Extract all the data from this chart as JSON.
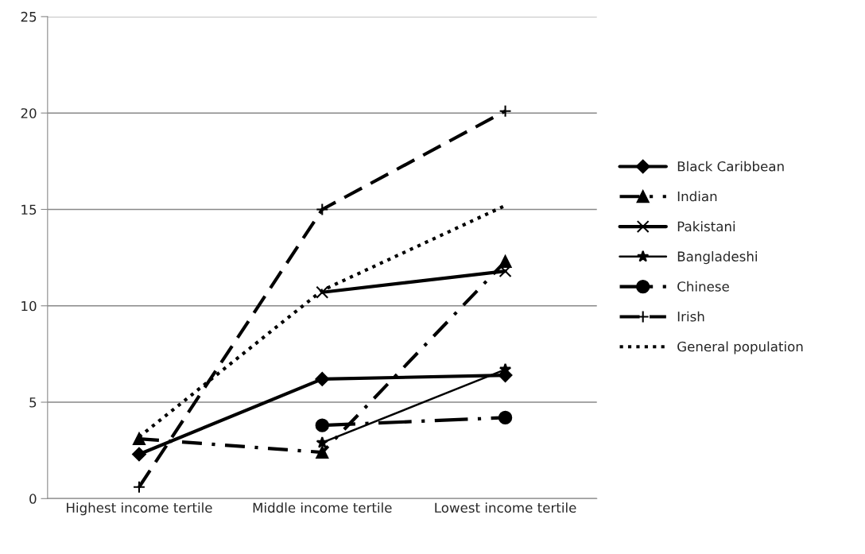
{
  "chart_data": {
    "type": "line",
    "categories": [
      "Highest income tertile",
      "Middle income tertile",
      "Lowest income tertile"
    ],
    "series": [
      {
        "name": "Black Caribbean",
        "color": "#000000",
        "marker": "diamond",
        "line_style": "solid",
        "values": [
          2.3,
          6.2,
          6.4
        ]
      },
      {
        "name": "Indian",
        "color": "#000000",
        "marker": "triangle",
        "line_style": "dashdot",
        "values": [
          3.1,
          2.4,
          12.3
        ]
      },
      {
        "name": "Pakistani",
        "color": "#000000",
        "marker": "cross",
        "line_style": "solid",
        "values": [
          null,
          10.7,
          11.8
        ]
      },
      {
        "name": "Bangladeshi",
        "color": "#000000",
        "marker": "star",
        "line_style": "solid",
        "values": [
          null,
          2.9,
          6.7
        ]
      },
      {
        "name": "Chinese",
        "color": "#000000",
        "marker": "circle",
        "line_style": "longdashdot",
        "values": [
          null,
          3.8,
          4.2
        ]
      },
      {
        "name": "Irish",
        "color": "#000000",
        "marker": "plus",
        "line_style": "dashed",
        "values": [
          0.6,
          15.0,
          20.1
        ]
      },
      {
        "name": "General population",
        "color": "#000000",
        "marker": "none",
        "line_style": "dotted",
        "values": [
          3.2,
          10.8,
          15.2
        ]
      }
    ],
    "ylim": [
      0,
      25
    ],
    "yticks": [
      0,
      5,
      10,
      15,
      20,
      25
    ],
    "grid": "y",
    "legend": "right"
  }
}
